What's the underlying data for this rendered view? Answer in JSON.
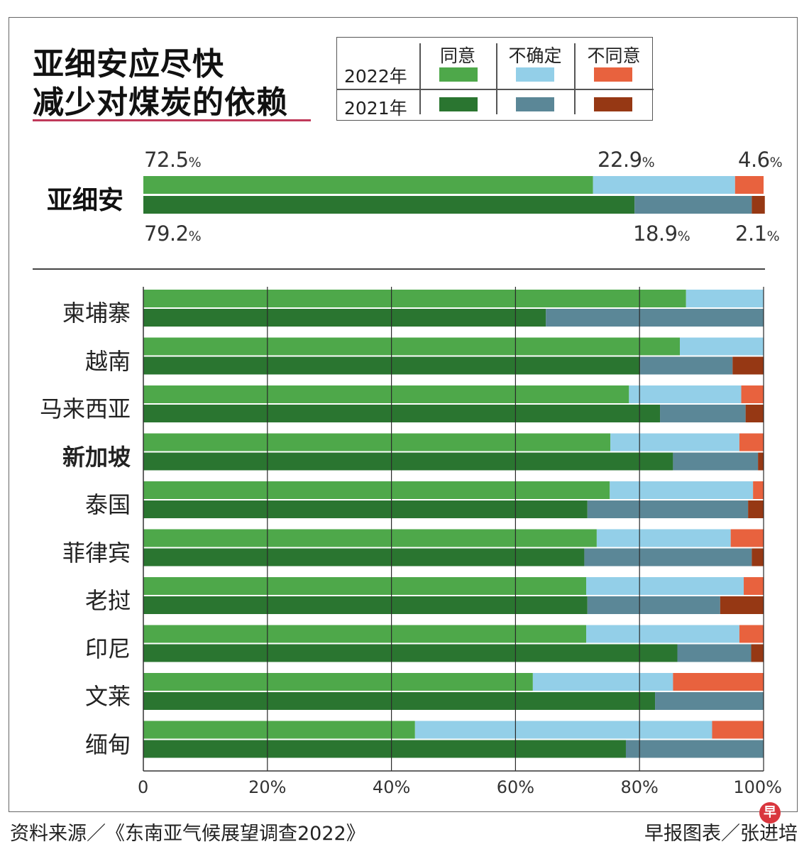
{
  "title_line1": "亚细安应尽快",
  "title_line2": "减少对煤炭的依赖",
  "legend": {
    "agree": "同意",
    "unsure": "不确定",
    "disagree": "不同意",
    "year_2022": "2022年",
    "year_2021": "2021年"
  },
  "colors": {
    "agree_2022": "#4ea84a",
    "unsure_2022": "#93cfe8",
    "disagree_2022": "#e8623e",
    "agree_2021": "#2a7530",
    "unsure_2021": "#5b8797",
    "disagree_2021": "#963814"
  },
  "summary": {
    "label": "亚细安",
    "v2022": {
      "agree": "72.5",
      "unsure": "22.9",
      "disagree": "4.6"
    },
    "v2021": {
      "agree": "79.2",
      "unsure": "18.9",
      "disagree": "2.1"
    },
    "unit": "%"
  },
  "chart_data": {
    "type": "bar",
    "orientation": "horizontal-stacked",
    "title": "亚细安应尽快减少对煤炭的依赖",
    "categories": [
      "柬埔寨",
      "越南",
      "马来西亚",
      "新加坡",
      "泰国",
      "菲律宾",
      "老挝",
      "印尼",
      "文莱",
      "缅甸"
    ],
    "bold_categories": [
      "新加坡"
    ],
    "series_order": [
      "同意",
      "不确定",
      "不同意"
    ],
    "series_2022": [
      {
        "name": "同意",
        "values": [
          87.5,
          86.5,
          78.3,
          75.3,
          75.2,
          73.1,
          71.4,
          71.4,
          62.8,
          43.8
        ]
      },
      {
        "name": "不确定",
        "values": [
          12.5,
          13.5,
          18.1,
          20.8,
          23.1,
          21.6,
          25.4,
          24.7,
          22.6,
          47.9
        ]
      },
      {
        "name": "不同意",
        "values": [
          0.0,
          0.0,
          3.6,
          3.9,
          1.7,
          5.3,
          3.2,
          3.9,
          14.6,
          8.3
        ]
      }
    ],
    "series_2021": [
      {
        "name": "同意",
        "values": [
          64.9,
          80.1,
          83.3,
          85.4,
          71.6,
          71.1,
          71.6,
          86.1,
          82.5,
          77.8
        ]
      },
      {
        "name": "不确定",
        "values": [
          35.1,
          14.9,
          13.8,
          13.7,
          25.9,
          27.0,
          21.4,
          11.9,
          17.5,
          22.2
        ]
      },
      {
        "name": "不同意",
        "values": [
          0.0,
          5.0,
          2.9,
          0.9,
          2.5,
          1.9,
          7.0,
          2.0,
          0.0,
          0.0
        ]
      }
    ],
    "xlim": [
      0,
      100
    ],
    "xticks": [
      "0",
      "20%",
      "40%",
      "60%",
      "80%",
      "100%"
    ],
    "grid": true
  },
  "footer": {
    "source": "资料来源／《东南亚气候展望调查2022》",
    "credit": "早报图表／张进培",
    "logo_char": "早"
  }
}
